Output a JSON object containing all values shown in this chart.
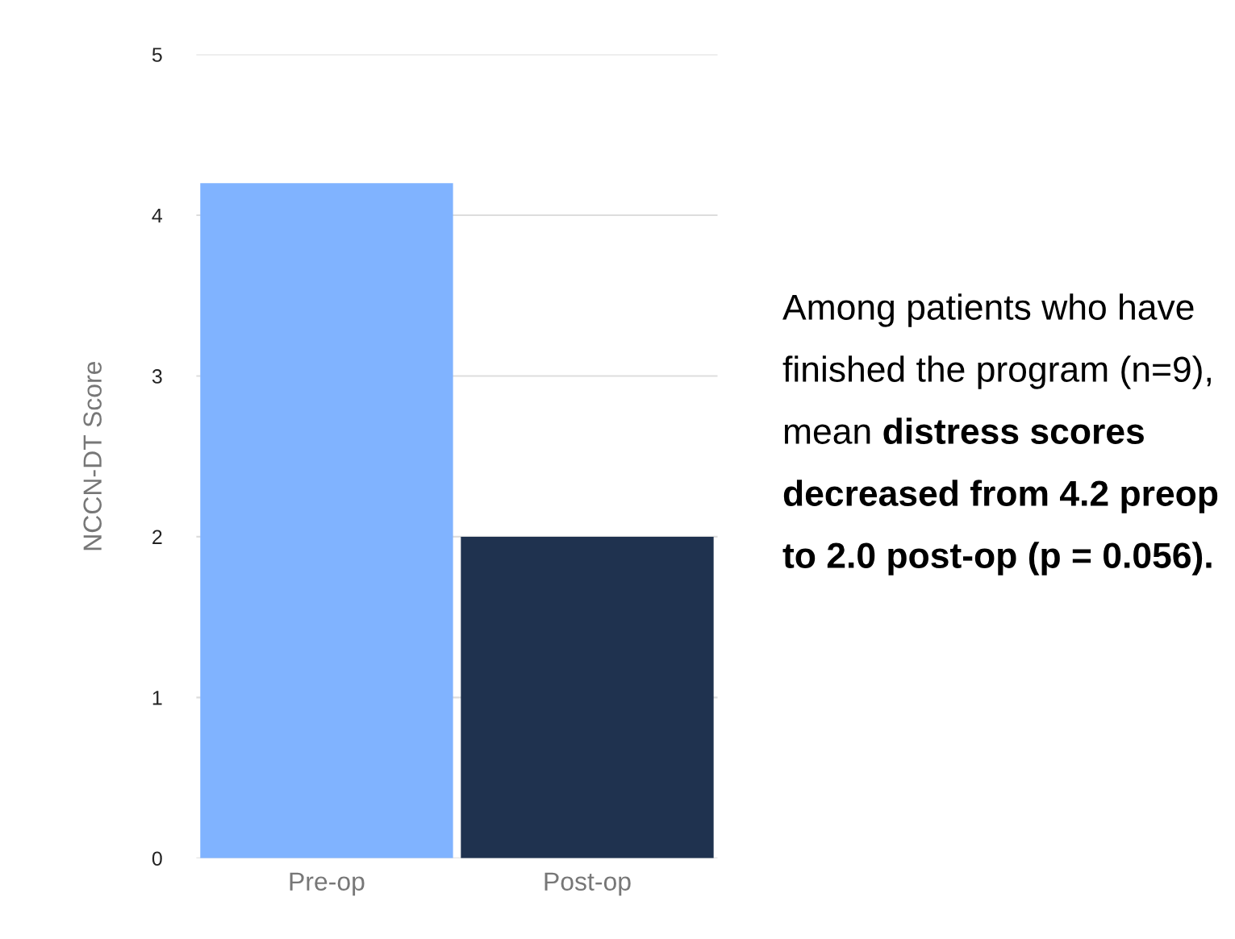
{
  "chart_data": {
    "type": "bar",
    "categories": [
      "Pre-op",
      "Post-op"
    ],
    "values": [
      4.2,
      2.0
    ],
    "colors": [
      "#80b3ff",
      "#1f324f"
    ],
    "ylabel": "NCCN-DT Score",
    "ylim": [
      0,
      5
    ],
    "yticks": [
      0,
      1,
      2,
      3,
      4,
      5
    ],
    "grid": "y",
    "annotations": [
      "Among patients who have finished the program (n=9), mean",
      "distress scores decreased from 4.2 preop to 2.0 post-op (p = 0.056)."
    ]
  }
}
